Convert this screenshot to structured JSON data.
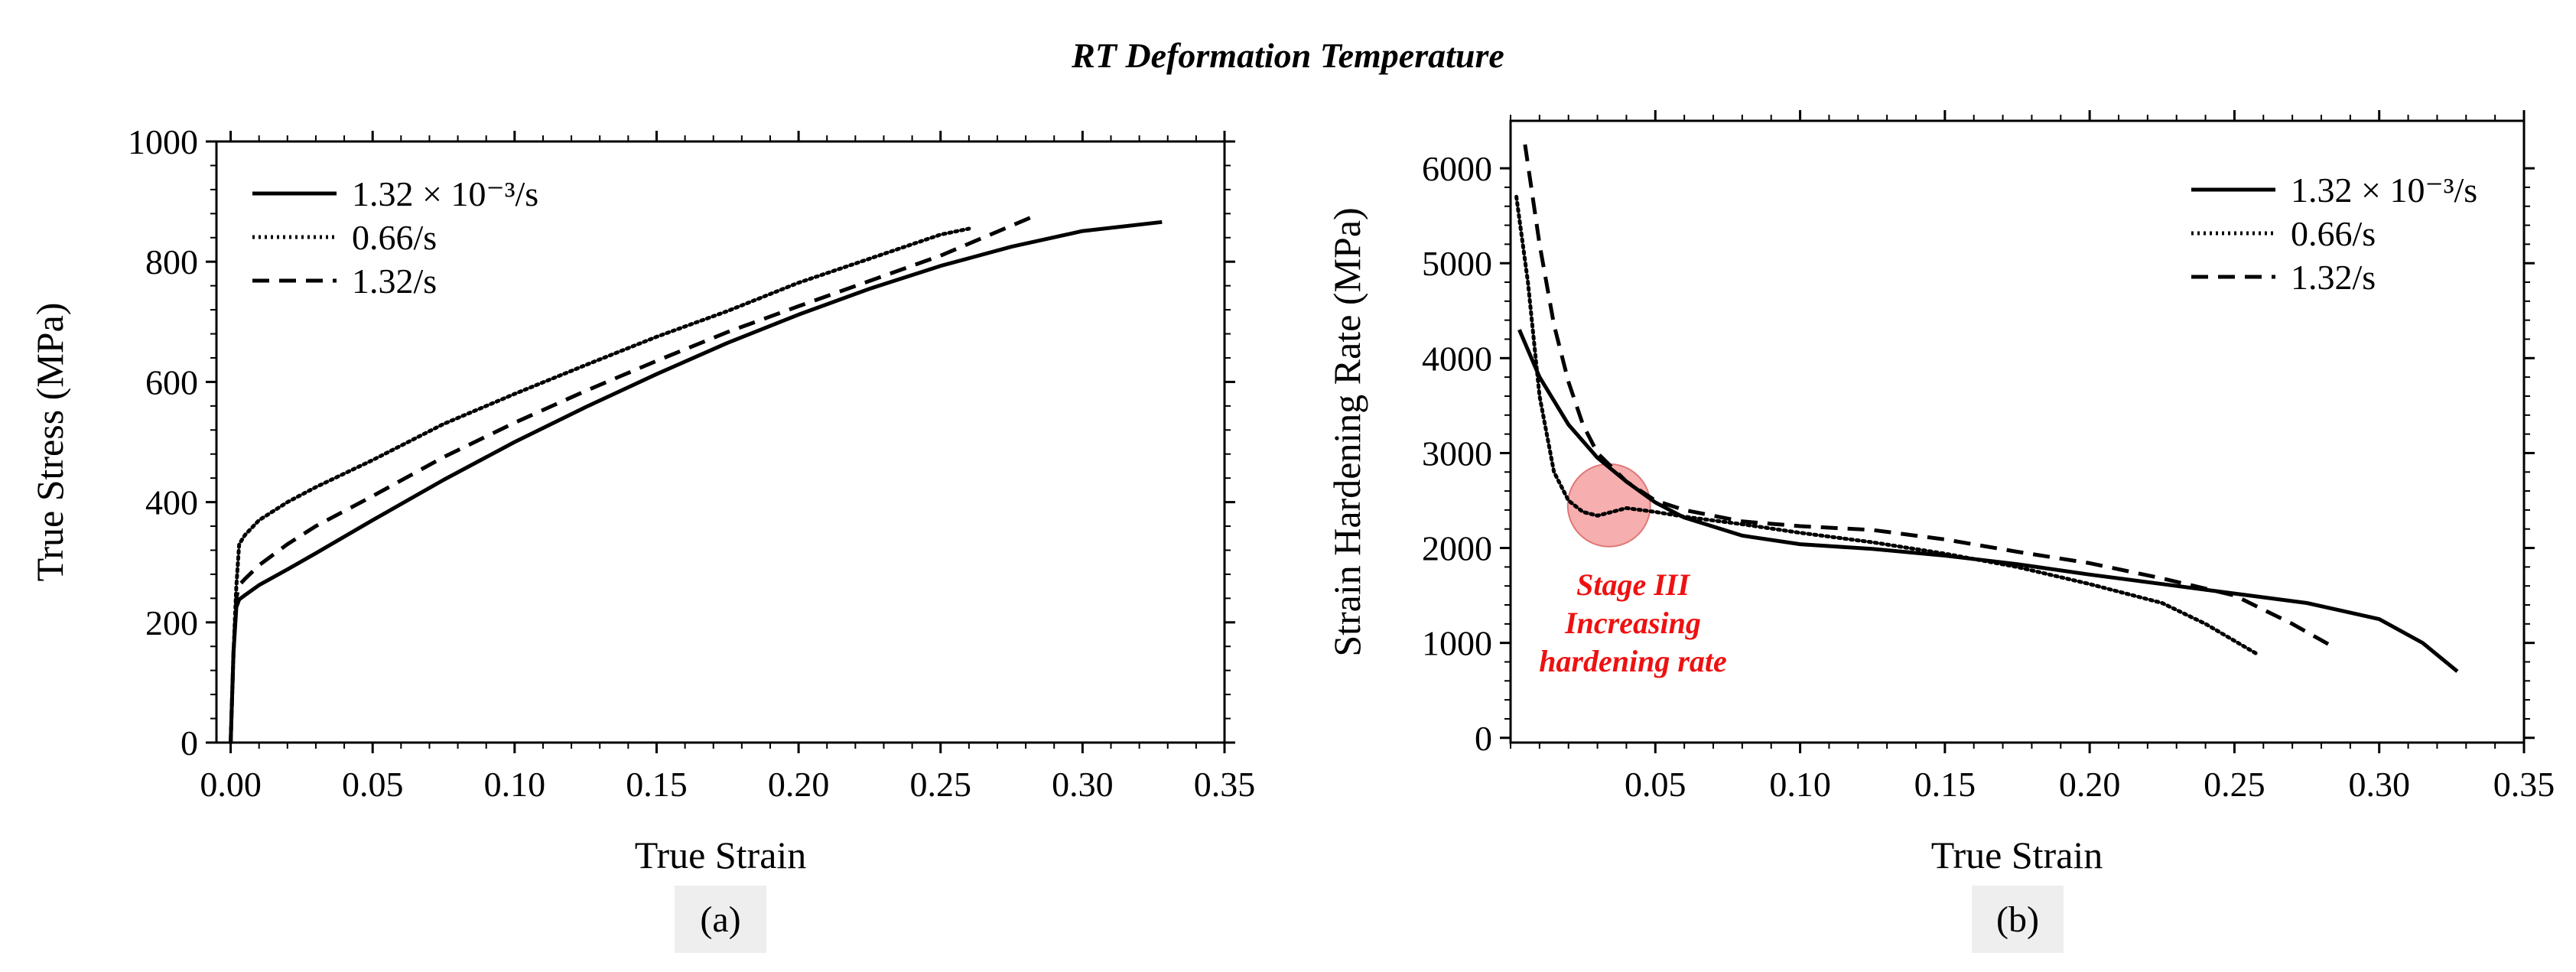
{
  "figure": {
    "title": "RT Deformation Temperature",
    "subcaptions": [
      "(a)",
      "(b)"
    ]
  },
  "chart_data": [
    {
      "type": "line",
      "title": "",
      "xlabel": "True Strain",
      "ylabel": "True Stress (MPa)",
      "xlim": [
        -0.005,
        0.35
      ],
      "ylim": [
        0,
        1000
      ],
      "xticks": [
        0,
        0.05,
        0.1,
        0.15,
        0.2,
        0.25,
        0.3,
        0.35
      ],
      "xtick_labels": [
        "0.00",
        "0.05",
        "0.10",
        "0.15",
        "0.20",
        "0.25",
        "0.30",
        "0.35"
      ],
      "yticks": [
        0,
        200,
        400,
        600,
        800,
        1000
      ],
      "ytick_labels": [
        "0",
        "200",
        "400",
        "600",
        "800",
        "1000"
      ],
      "legend_position": "top-left",
      "series": [
        {
          "name": "1.32 × 10⁻³/s",
          "style": "solid",
          "x": [
            0,
            0.001,
            0.002,
            0.003,
            0.005,
            0.01,
            0.02,
            0.03,
            0.05,
            0.075,
            0.1,
            0.125,
            0.15,
            0.175,
            0.2,
            0.225,
            0.25,
            0.275,
            0.3,
            0.328
          ],
          "y": [
            0,
            150,
            225,
            238,
            245,
            262,
            288,
            315,
            370,
            437,
            500,
            558,
            613,
            665,
            712,
            755,
            793,
            825,
            851,
            866
          ]
        },
        {
          "name": "0.66/s",
          "style": "dotted",
          "x": [
            0,
            0.001,
            0.002,
            0.003,
            0.005,
            0.01,
            0.02,
            0.03,
            0.05,
            0.075,
            0.1,
            0.125,
            0.15,
            0.175,
            0.2,
            0.225,
            0.25,
            0.26
          ],
          "y": [
            0,
            150,
            260,
            330,
            345,
            370,
            400,
            425,
            470,
            530,
            580,
            628,
            675,
            718,
            765,
            805,
            845,
            855
          ]
        },
        {
          "name": "1.32/s",
          "style": "dashed",
          "x": [
            0,
            0.001,
            0.002,
            0.003,
            0.005,
            0.01,
            0.02,
            0.03,
            0.05,
            0.075,
            0.1,
            0.125,
            0.15,
            0.175,
            0.2,
            0.225,
            0.25,
            0.27,
            0.284
          ],
          "y": [
            0,
            150,
            240,
            262,
            272,
            295,
            330,
            360,
            410,
            475,
            532,
            585,
            635,
            683,
            726,
            768,
            810,
            850,
            878
          ]
        }
      ]
    },
    {
      "type": "line",
      "title": "",
      "xlabel": "True Strain",
      "ylabel": "Strain Hardening Rate (MPa)",
      "xlim": [
        0,
        0.35
      ],
      "ylim": [
        -50,
        6500
      ],
      "xticks": [
        0.05,
        0.1,
        0.15,
        0.2,
        0.25,
        0.3,
        0.35
      ],
      "xtick_labels": [
        "0.05",
        "0.10",
        "0.15",
        "0.20",
        "0.25",
        "0.30",
        "0.35"
      ],
      "yticks": [
        0,
        1000,
        2000,
        3000,
        4000,
        5000,
        6000
      ],
      "ytick_labels": [
        "0",
        "1000",
        "2000",
        "3000",
        "4000",
        "5000",
        "6000"
      ],
      "legend_position": "top-right",
      "series": [
        {
          "name": "1.32 × 10⁻³/s",
          "style": "solid",
          "x": [
            0.003,
            0.01,
            0.02,
            0.03,
            0.04,
            0.05,
            0.06,
            0.08,
            0.1,
            0.125,
            0.15,
            0.175,
            0.2,
            0.225,
            0.25,
            0.275,
            0.3,
            0.315,
            0.327
          ],
          "y": [
            4300,
            3800,
            3300,
            2950,
            2700,
            2480,
            2320,
            2130,
            2040,
            1990,
            1920,
            1830,
            1720,
            1620,
            1520,
            1420,
            1250,
            1000,
            700
          ]
        },
        {
          "name": "0.66/s",
          "style": "dotted",
          "x": [
            0.002,
            0.006,
            0.01,
            0.015,
            0.02,
            0.025,
            0.03,
            0.035,
            0.04,
            0.05,
            0.06,
            0.08,
            0.1,
            0.125,
            0.15,
            0.175,
            0.2,
            0.225,
            0.24,
            0.258
          ],
          "y": [
            5700,
            4800,
            3600,
            2800,
            2500,
            2380,
            2340,
            2380,
            2420,
            2380,
            2330,
            2250,
            2160,
            2060,
            1940,
            1800,
            1620,
            1420,
            1200,
            880
          ]
        },
        {
          "name": "1.32/s",
          "style": "dashed",
          "x": [
            0.005,
            0.01,
            0.015,
            0.02,
            0.025,
            0.03,
            0.04,
            0.05,
            0.06,
            0.08,
            0.1,
            0.125,
            0.15,
            0.175,
            0.2,
            0.225,
            0.25,
            0.27,
            0.284
          ],
          "y": [
            6250,
            5200,
            4350,
            3750,
            3300,
            3000,
            2700,
            2500,
            2400,
            2280,
            2230,
            2190,
            2090,
            1960,
            1840,
            1680,
            1500,
            1200,
            960
          ]
        }
      ],
      "annotation": {
        "lines": [
          "Stage III",
          "Increasing",
          "hardening rate"
        ],
        "color": "#ee1111",
        "highlight_center": [
          0.034,
          2450
        ],
        "highlight_color": "#f4a0a0"
      }
    }
  ]
}
